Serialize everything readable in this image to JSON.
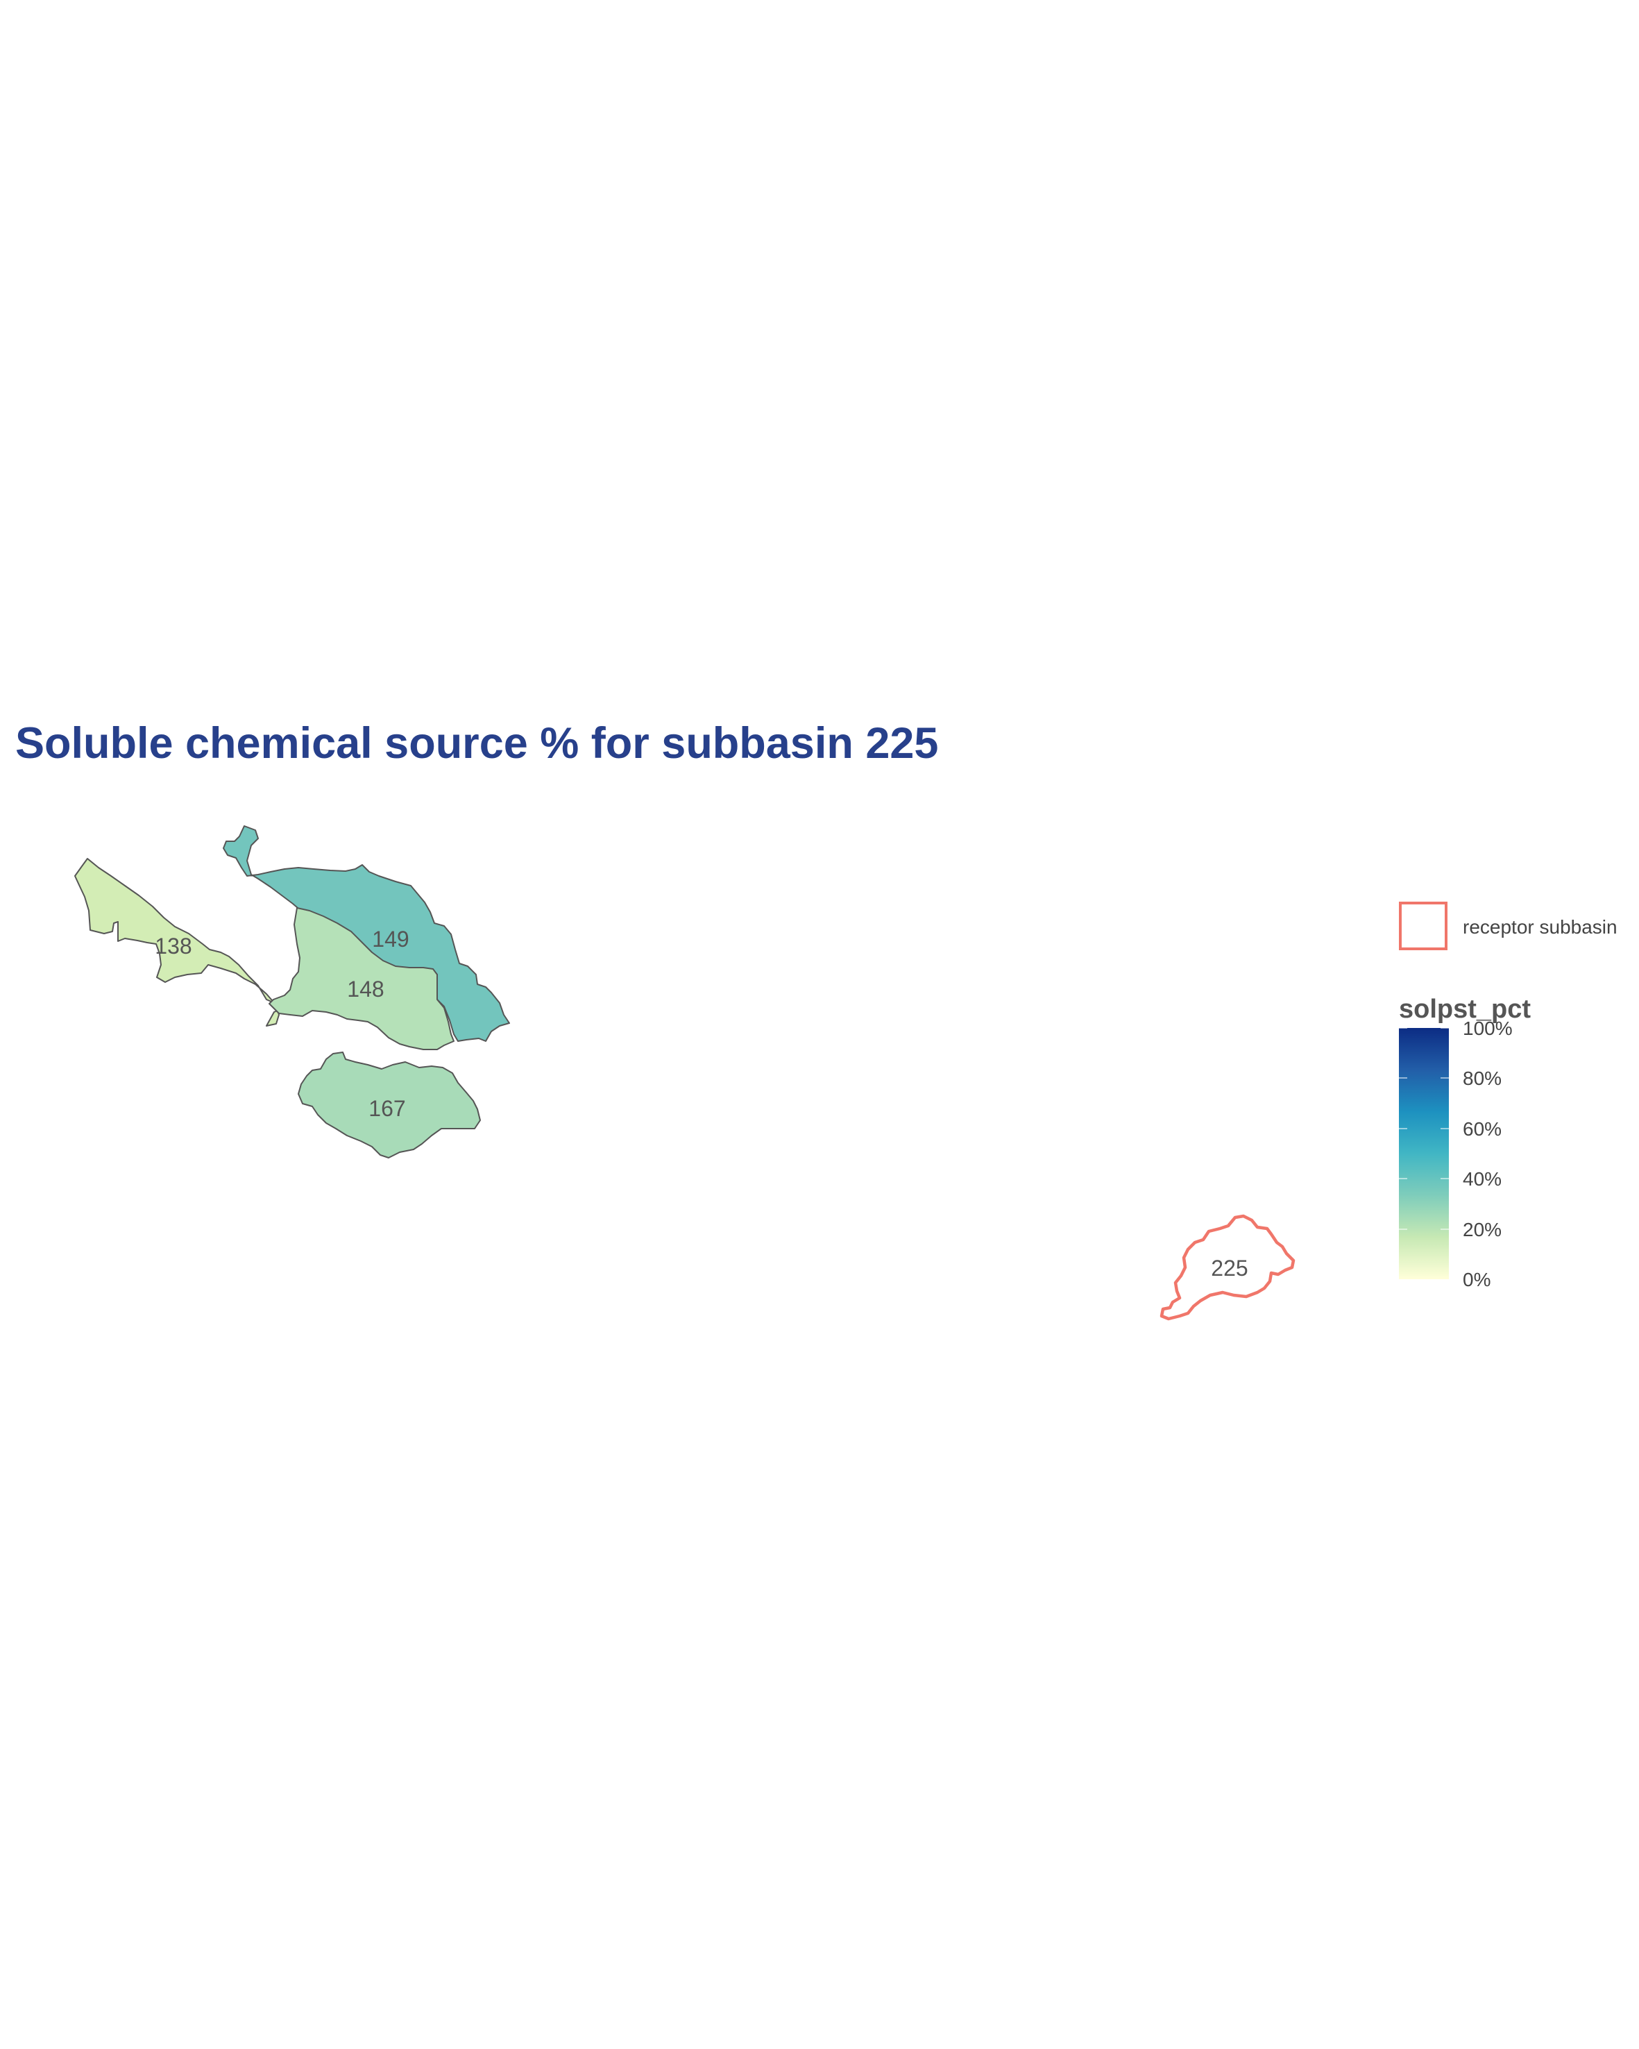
{
  "title": "Soluble chemical source % for subbasin 225",
  "colors": {
    "title": "#27408B",
    "outline": "#555555",
    "receptor": "#F0766A",
    "label": "#555555",
    "legend_text": "#444444",
    "legend_title": "#555555"
  },
  "subbasins": [
    {
      "id": "138",
      "label": "138",
      "solpst_pct": 10,
      "fill": "#D3EDB5"
    },
    {
      "id": "149",
      "label": "149",
      "solpst_pct": 31,
      "fill": "#73C5BD"
    },
    {
      "id": "148",
      "label": "148",
      "solpst_pct": 16,
      "fill": "#B5E1B8"
    },
    {
      "id": "167",
      "label": "167",
      "solpst_pct": 18,
      "fill": "#A8DBB8"
    }
  ],
  "receptor": {
    "id": "225",
    "label": "225"
  },
  "legend": {
    "receptor_label": "receptor subbasin",
    "colorbar_title": "solpst_pct",
    "ticks": [
      "100%",
      "80%",
      "60%",
      "40%",
      "20%",
      "0%"
    ],
    "scale_colors": [
      "#FFFFD9",
      "#C7E9B4",
      "#7FCDBB",
      "#41B6C4",
      "#1D91C0",
      "#225EA8",
      "#0C2C84"
    ]
  }
}
